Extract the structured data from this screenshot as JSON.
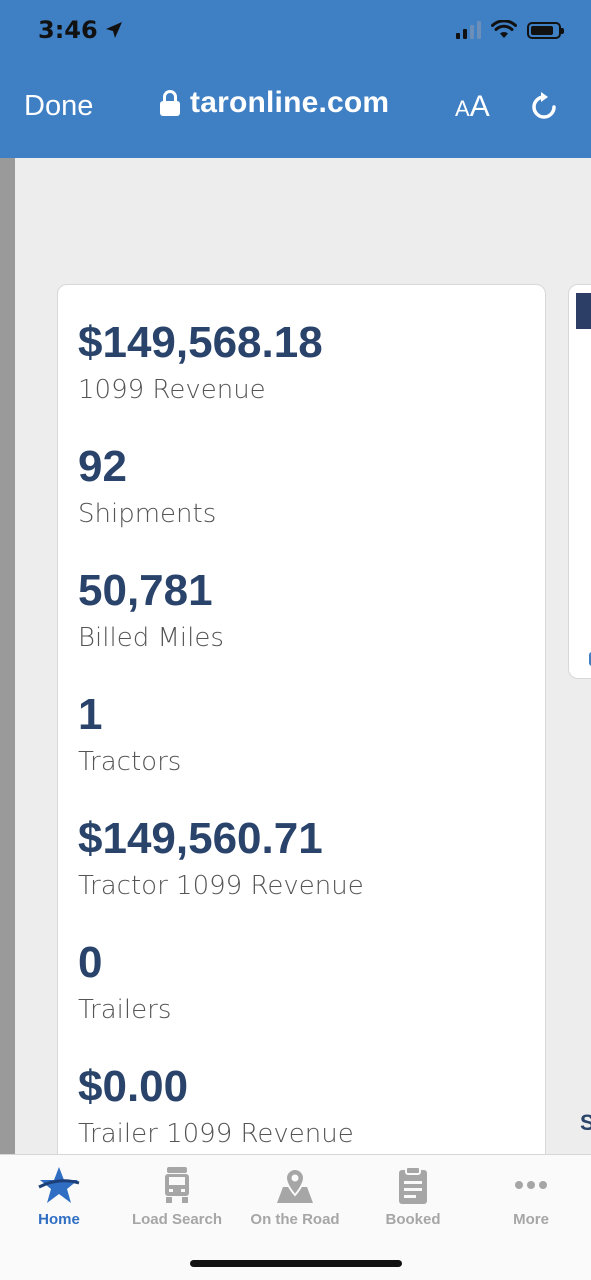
{
  "status_bar": {
    "time": "3:46"
  },
  "browser": {
    "done_label": "Done",
    "url": "taronline.com",
    "text_size_label_small": "A",
    "text_size_label_large": "A"
  },
  "stats": [
    {
      "value": "$149,568.18",
      "label": "1099 Revenue"
    },
    {
      "value": "92",
      "label": "Shipments"
    },
    {
      "value": "50,781",
      "label": "Billed Miles"
    },
    {
      "value": "1",
      "label": "Tractors"
    },
    {
      "value": "$149,560.71",
      "label": "Tractor 1099 Revenue"
    },
    {
      "value": "0",
      "label": "Trailers"
    },
    {
      "value": "$0.00",
      "label": "Trailer 1099 Revenue"
    }
  ],
  "side_panel": {
    "partial_letter": "S"
  },
  "tabbar": {
    "items": [
      {
        "label": "Home",
        "icon": "star-icon",
        "active": true
      },
      {
        "label": "Load Search",
        "icon": "truck-icon",
        "active": false
      },
      {
        "label": "On the Road",
        "icon": "map-pin-icon",
        "active": false
      },
      {
        "label": "Booked",
        "icon": "clipboard-icon",
        "active": false
      },
      {
        "label": "More",
        "icon": "more-dots-icon",
        "active": false
      }
    ]
  },
  "colors": {
    "browser_bar": "#3f7fc4",
    "stat_value": "#29436b",
    "active_tab": "#2f6ec3",
    "inactive_tab": "#a6a6a6"
  }
}
